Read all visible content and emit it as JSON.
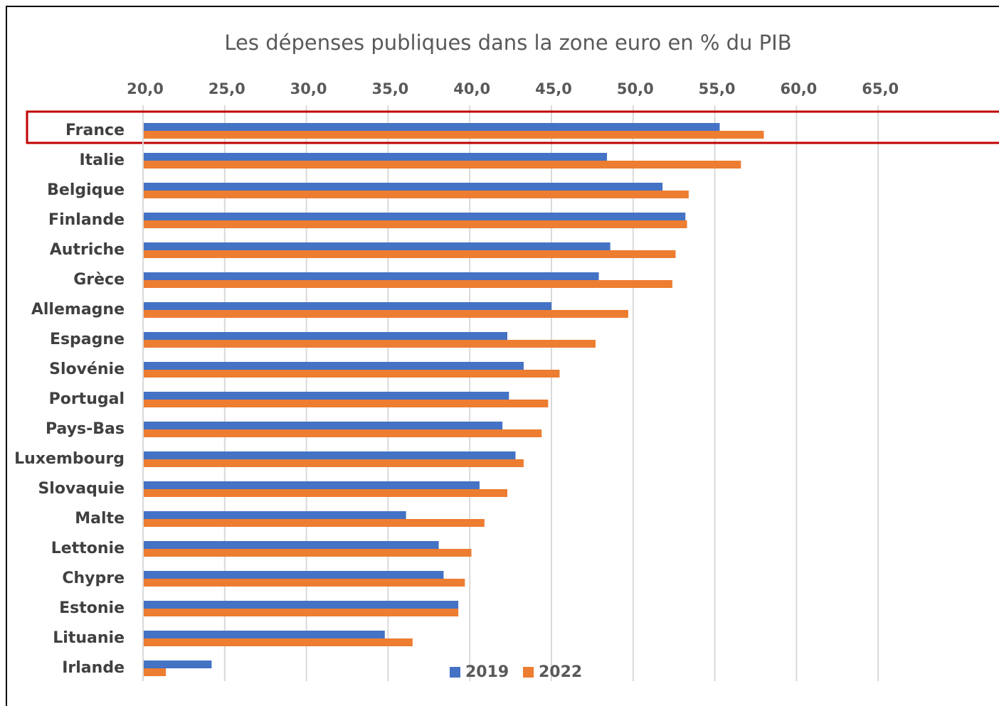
{
  "chart_data": {
    "type": "hbar",
    "title": "Les dépenses publiques dans la zone euro en % du PIB",
    "categories": [
      "France",
      "Italie",
      "Belgique",
      "Finlande",
      "Autriche",
      "Grèce",
      "Allemagne",
      "Espagne",
      "Slovénie",
      "Portugal",
      "Pays-Bas",
      "Luxembourg",
      "Slovaquie",
      "Malte",
      "Lettonie",
      "Chypre",
      "Estonie",
      "Lituanie",
      "Irlande"
    ],
    "series": [
      {
        "name": "2019",
        "color": "#4472c4",
        "values": [
          55.3,
          48.4,
          51.8,
          53.2,
          48.6,
          47.9,
          45.0,
          42.3,
          43.3,
          42.4,
          42.0,
          42.8,
          40.6,
          36.1,
          38.1,
          38.4,
          39.3,
          34.8,
          24.2
        ]
      },
      {
        "name": "2022",
        "color": "#ed7d31",
        "values": [
          58.0,
          56.6,
          53.4,
          53.3,
          52.6,
          52.4,
          49.7,
          47.7,
          45.5,
          44.8,
          44.4,
          43.3,
          42.3,
          40.9,
          40.1,
          39.7,
          39.3,
          36.5,
          21.4
        ]
      }
    ],
    "xlim": [
      20,
      70
    ],
    "xticks": [
      {
        "value": 20,
        "label": "20,0"
      },
      {
        "value": 25,
        "label": "25,0"
      },
      {
        "value": 30,
        "label": "30,0"
      },
      {
        "value": 35,
        "label": "35,0"
      },
      {
        "value": 40,
        "label": "40,0"
      },
      {
        "value": 45,
        "label": "45,0"
      },
      {
        "value": 50,
        "label": "50,0"
      },
      {
        "value": 55,
        "label": "55,0"
      },
      {
        "value": 60,
        "label": "60,0"
      },
      {
        "value": 65,
        "label": "65,0"
      }
    ],
    "grid": true,
    "legend": "bottom"
  }
}
